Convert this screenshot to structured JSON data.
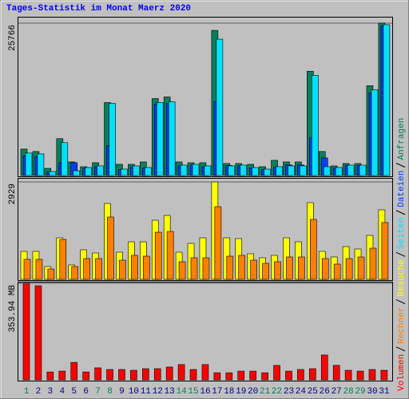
{
  "chart_data": [
    {
      "type": "bar",
      "title": "Tages-Statistik im Monat Maerz 2020",
      "ylim": [
        0,
        25766
      ],
      "yticks": [
        25766
      ],
      "series": [
        {
          "name": "Anfragen",
          "color": "#00805c",
          "values": [
            4475,
            4068,
            1220,
            6238,
            2305,
            1492,
            2170,
            12340,
            1900,
            1900,
            2305,
            13018,
            13290,
            2305,
            2170,
            2170,
            24545,
            2034,
            2034,
            1900,
            1492,
            2577,
            2305,
            2305,
            17630,
            4068,
            1627,
            2034,
            2034,
            15188,
            25766
          ]
        },
        {
          "name": "Dateien",
          "color": "#0040ff",
          "values": [
            3300,
            3200,
            600,
            2170,
            2170,
            1200,
            1500,
            5020,
            1000,
            1500,
            1250,
            12070,
            12200,
            1650,
            1800,
            1500,
            12475,
            1700,
            1650,
            1300,
            1000,
            1400,
            1800,
            1800,
            6370,
            2980,
            1250,
            1700,
            1700,
            13970,
            25300
          ]
        },
        {
          "name": "Seiten",
          "color": "#00e0ff",
          "values": [
            3800,
            3660,
            680,
            5560,
            810,
            1360,
            1630,
            12200,
            1090,
            1630,
            1360,
            12340,
            12475,
            1760,
            1900,
            1630,
            23050,
            1630,
            1760,
            1360,
            1090,
            1490,
            1630,
            1630,
            16950,
            1490,
            1360,
            1760,
            1760,
            14500,
            25500
          ]
        }
      ]
    },
    {
      "type": "bar",
      "ylim": [
        0,
        2929
      ],
      "yticks": [
        2929
      ],
      "series": [
        {
          "name": "Besuche",
          "color": "#ffff00",
          "values": [
            840,
            840,
            384,
            1248,
            432,
            888,
            792,
            2281,
            816,
            1128,
            1128,
            1777,
            1921,
            816,
            1080,
            1248,
            2929,
            1248,
            1224,
            768,
            648,
            720,
            1248,
            1128,
            2305,
            840,
            672,
            984,
            912,
            1320,
            2089
          ]
        },
        {
          "name": "Rechner",
          "color": "#ff8000",
          "values": [
            600,
            600,
            312,
            1200,
            384,
            624,
            624,
            1873,
            576,
            720,
            696,
            1416,
            1440,
            528,
            648,
            648,
            2185,
            696,
            720,
            576,
            480,
            528,
            672,
            672,
            1801,
            624,
            456,
            624,
            672,
            936,
            1705
          ]
        }
      ]
    },
    {
      "type": "bar",
      "ylim": [
        0,
        353.94
      ],
      "yticks": [
        {
          "value": 353.94,
          "label": "353.94 MB"
        }
      ],
      "categories": [
        "1",
        "2",
        "3",
        "4",
        "5",
        "6",
        "7",
        "8",
        "9",
        "10",
        "11",
        "12",
        "13",
        "14",
        "15",
        "16",
        "17",
        "18",
        "19",
        "20",
        "21",
        "22",
        "23",
        "24",
        "25",
        "26",
        "27",
        "28",
        "29",
        "30",
        "31"
      ],
      "category_colors": [
        "#00805c",
        "#000080",
        "#000080",
        "#000080",
        "#000080",
        "#000080",
        "#00805c",
        "#00805c",
        "#000080",
        "#000080",
        "#000080",
        "#000080",
        "#000080",
        "#00805c",
        "#00805c",
        "#000080",
        "#000080",
        "#000080",
        "#000080",
        "#000080",
        "#00805c",
        "#00805c",
        "#000080",
        "#000080",
        "#000080",
        "#000080",
        "#000080",
        "#00805c",
        "#00805c",
        "#000080",
        "#000080"
      ],
      "series": [
        {
          "name": "Volumen",
          "color": "#ff0000",
          "values": [
            353.94,
            345,
            29,
            32,
            64,
            29,
            44,
            38,
            38,
            35,
            41,
            41,
            47,
            56,
            38,
            56,
            26,
            26,
            32,
            32,
            26,
            53,
            32,
            38,
            41,
            91,
            53,
            35,
            32,
            38,
            35
          ]
        }
      ]
    }
  ]
}
